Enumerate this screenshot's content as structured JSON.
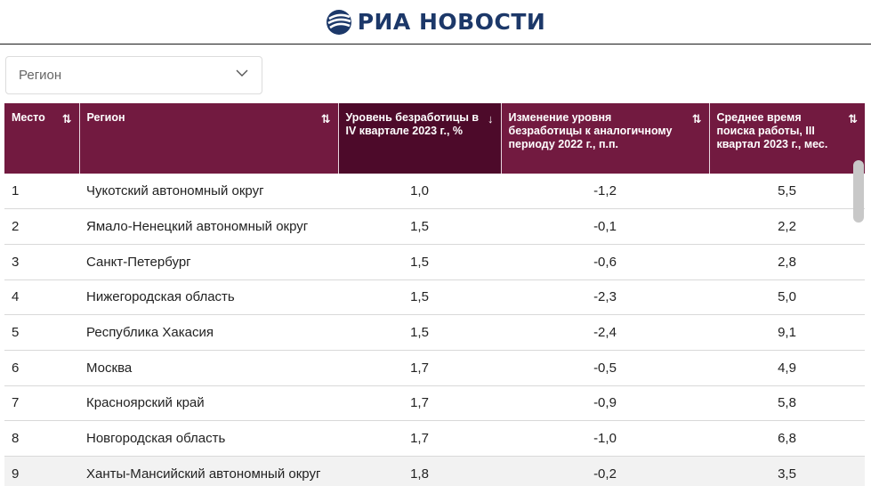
{
  "header": {
    "logo_text": "РИА НОВОСТИ",
    "logo_icon": "ria-globe-icon",
    "brand_color": "#1c3869"
  },
  "filter": {
    "label": "Регион",
    "icon": "chevron-down-icon"
  },
  "table": {
    "header_color": "#721a40",
    "active_header_color": "#4d0a2a",
    "columns": [
      {
        "label": "Место",
        "sort": "⇅",
        "sort_icon": "sort-both-icon"
      },
      {
        "label": "Регион",
        "sort": "⇅",
        "sort_icon": "sort-both-icon"
      },
      {
        "label": "Уровень безработицы в IV квартале 2023 г., %",
        "sort": "↓",
        "sort_icon": "sort-desc-icon"
      },
      {
        "label": "Изменение уровня безработицы к аналогичному периоду 2022 г., п.п.",
        "sort": "⇅",
        "sort_icon": "sort-both-icon"
      },
      {
        "label": "Среднее время поиска работы, III квартал 2023 г., мес.",
        "sort": "⇅",
        "sort_icon": "sort-both-icon"
      }
    ],
    "rows": [
      [
        "1",
        "Чукотский автономный округ",
        "1,0",
        "-1,2",
        "5,5"
      ],
      [
        "2",
        "Ямало-Ненецкий автономный округ",
        "1,5",
        "-0,1",
        "2,2"
      ],
      [
        "3",
        "Санкт-Петербург",
        "1,5",
        "-0,6",
        "2,8"
      ],
      [
        "4",
        "Нижегородская область",
        "1,5",
        "-2,3",
        "5,0"
      ],
      [
        "5",
        "Республика Хакасия",
        "1,5",
        "-2,4",
        "9,1"
      ],
      [
        "6",
        "Москва",
        "1,7",
        "-0,5",
        "4,9"
      ],
      [
        "7",
        "Красноярский край",
        "1,7",
        "-0,9",
        "5,8"
      ],
      [
        "8",
        "Новгородская область",
        "1,7",
        "-1,0",
        "6,8"
      ],
      [
        "9",
        "Ханты-Мансийский автономный округ",
        "1,8",
        "-0,2",
        "3,5"
      ]
    ]
  }
}
